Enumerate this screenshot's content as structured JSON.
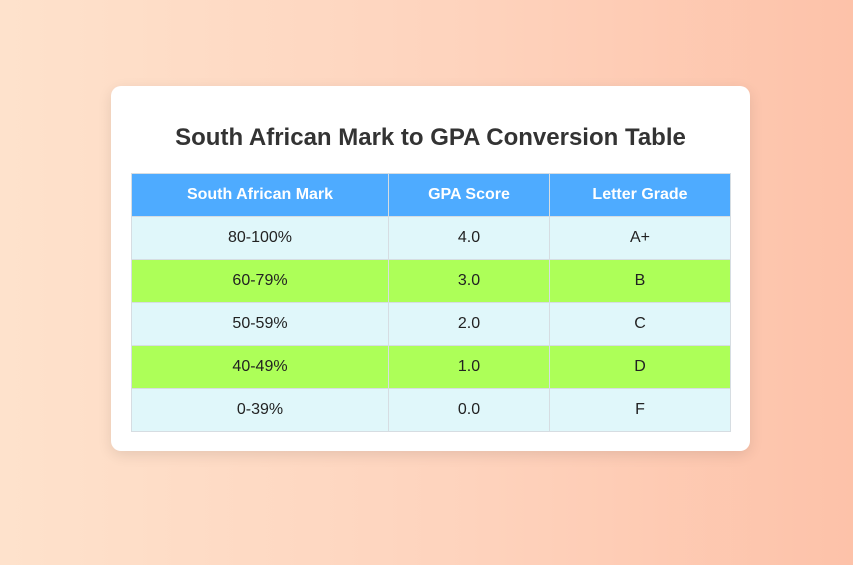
{
  "title": "South African Mark to GPA Conversion Table",
  "colors": {
    "header_bg": "#4eabff",
    "row_light": "#e0f7fa",
    "row_green": "#adff58"
  },
  "table": {
    "headers": [
      "South African Mark",
      "GPA Score",
      "Letter Grade"
    ],
    "rows": [
      [
        "80-100%",
        "4.0",
        "A+"
      ],
      [
        "60-79%",
        "3.0",
        "B"
      ],
      [
        "50-59%",
        "2.0",
        "C"
      ],
      [
        "40-49%",
        "1.0",
        "D"
      ],
      [
        "0-39%",
        "0.0",
        "F"
      ]
    ]
  }
}
